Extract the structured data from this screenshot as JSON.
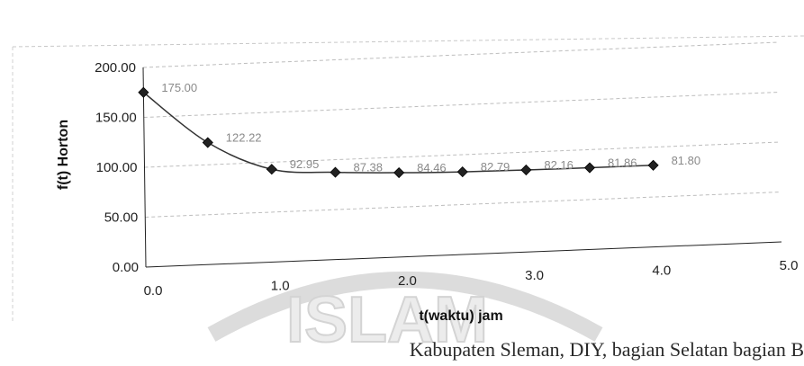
{
  "chart_data": {
    "type": "scatter",
    "title": "",
    "xlabel": "t(waktu) jam",
    "ylabel": "f(t) Horton",
    "xlim": [
      0,
      5
    ],
    "ylim": [
      0,
      200
    ],
    "x_ticks": [
      "0.0",
      "1.0",
      "2.0",
      "3.0",
      "4.0",
      "5.0"
    ],
    "y_ticks": [
      "0.00",
      "50.00",
      "100.00",
      "150.00",
      "200.00"
    ],
    "grid": "horizontal dashed",
    "legend": "none",
    "marker": "diamond",
    "color": "#222222",
    "points": [
      {
        "x": 0.0,
        "y": 175.0,
        "label": "175.00"
      },
      {
        "x": 0.5,
        "y": 122.22,
        "label": "122.22"
      },
      {
        "x": 1.0,
        "y": 92.95,
        "label": "92.95"
      },
      {
        "x": 1.5,
        "y": 87.38,
        "label": "87.38"
      },
      {
        "x": 2.0,
        "y": 84.46,
        "label": "84.46"
      },
      {
        "x": 2.5,
        "y": 82.79,
        "label": "82.79"
      },
      {
        "x": 3.0,
        "y": 82.16,
        "label": "82.16"
      },
      {
        "x": 3.5,
        "y": 81.86,
        "label": "81.86"
      },
      {
        "x": 4.0,
        "y": 81.8,
        "label": "81.80"
      }
    ]
  },
  "watermark": "ISLAM",
  "caption_fragment": "Kabupaten Sleman, DIY, bagian Selatan bagian B"
}
